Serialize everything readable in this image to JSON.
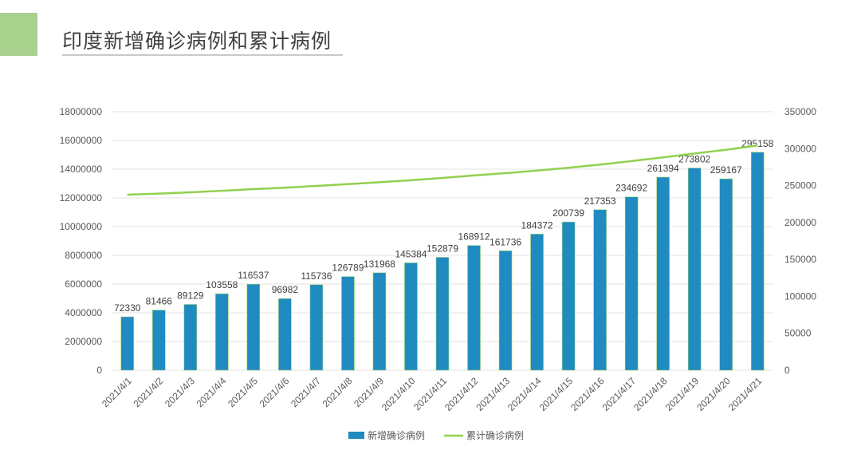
{
  "slide": {
    "title": "印度新增确诊病例和累计病例",
    "accent_color": "#a9d18e"
  },
  "chart_data": {
    "type": "bar+line",
    "categories": [
      "2021/4/1",
      "2021/4/2",
      "2021/4/3",
      "2021/4/4",
      "2021/4/5",
      "2021/4/6",
      "2021/4/7",
      "2021/4/8",
      "2021/4/9",
      "2021/4/10",
      "2021/4/11",
      "2021/4/12",
      "2021/4/13",
      "2021/4/14",
      "2021/4/15",
      "2021/4/16",
      "2021/4/17",
      "2021/4/18",
      "2021/4/19",
      "2021/4/20",
      "2021/4/21"
    ],
    "series": [
      {
        "name": "新增确诊病例",
        "type": "bar",
        "axis": "right",
        "color": "#1f8bc0",
        "values": [
          72330,
          81466,
          89129,
          103558,
          116537,
          96982,
          115736,
          126789,
          131968,
          145384,
          152879,
          168912,
          161736,
          184372,
          200739,
          217353,
          234692,
          261394,
          273802,
          259167,
          295158
        ],
        "data_labels": true
      },
      {
        "name": "累计确诊病例",
        "type": "line",
        "axis": "left",
        "color": "#92d050",
        "values": [
          12220000,
          12300000,
          12390000,
          12490000,
          12610000,
          12710000,
          12830000,
          12960000,
          13090000,
          13230000,
          13390000,
          13560000,
          13720000,
          13900000,
          14100000,
          14320000,
          14560000,
          14820000,
          15090000,
          15350000,
          15650000
        ]
      }
    ],
    "left_axis": {
      "min": 0,
      "max": 18000000,
      "ticks": [
        0,
        2000000,
        4000000,
        6000000,
        8000000,
        10000000,
        12000000,
        14000000,
        16000000,
        18000000
      ]
    },
    "right_axis": {
      "min": 0,
      "max": 350000,
      "ticks": [
        0,
        50000,
        100000,
        150000,
        200000,
        250000,
        300000,
        350000
      ]
    },
    "grid": true,
    "legend": "bottom"
  }
}
